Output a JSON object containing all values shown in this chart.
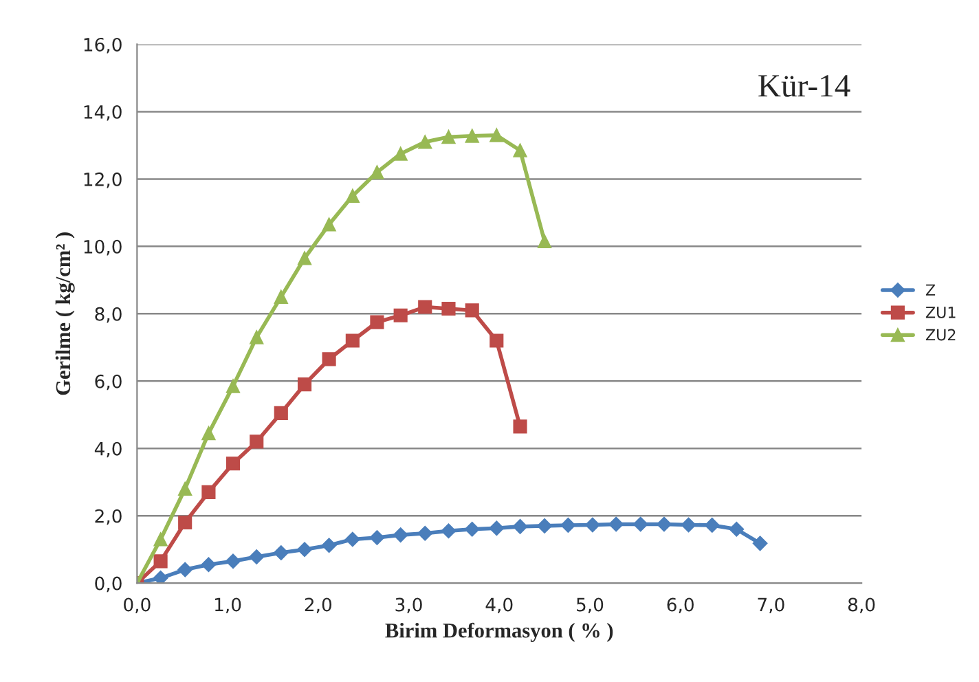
{
  "chart_data": {
    "type": "line",
    "xlabel": "Birim Deformasyon ( % )",
    "ylabel": "Gerilme ( kg/cm² )",
    "annotations": [
      "Kür-14"
    ],
    "xlim": [
      0,
      8
    ],
    "ylim": [
      0,
      16
    ],
    "xticks": [
      {
        "value": 0,
        "label": "0,0"
      },
      {
        "value": 1,
        "label": "1,0"
      },
      {
        "value": 2,
        "label": "2,0"
      },
      {
        "value": 3,
        "label": "3,0"
      },
      {
        "value": 4,
        "label": "4,0"
      },
      {
        "value": 5,
        "label": "5,0"
      },
      {
        "value": 6,
        "label": "6,0"
      },
      {
        "value": 7,
        "label": "7,0"
      },
      {
        "value": 8,
        "label": "8,0"
      }
    ],
    "yticks": [
      {
        "value": 0,
        "label": "0,0"
      },
      {
        "value": 2,
        "label": "2,0"
      },
      {
        "value": 4,
        "label": "4,0"
      },
      {
        "value": 6,
        "label": "6,0"
      },
      {
        "value": 8,
        "label": "8,0"
      },
      {
        "value": 10,
        "label": "10,0"
      },
      {
        "value": 12,
        "label": "12,0"
      },
      {
        "value": 14,
        "label": "14,0"
      },
      {
        "value": 16,
        "label": "16,0"
      }
    ],
    "grid": "y",
    "legend": "right",
    "line_style": "solid",
    "series": [
      {
        "name": "Z",
        "color": "#4a7ebb",
        "marker": "diamond",
        "x": [
          0,
          0.26,
          0.53,
          0.79,
          1.06,
          1.32,
          1.59,
          1.85,
          2.12,
          2.38,
          2.65,
          2.91,
          3.18,
          3.44,
          3.7,
          3.97,
          4.23,
          4.5,
          4.76,
          5.03,
          5.29,
          5.56,
          5.82,
          6.09,
          6.35,
          6.62,
          6.88
        ],
        "values": [
          0,
          0.15,
          0.4,
          0.55,
          0.65,
          0.78,
          0.9,
          1.0,
          1.12,
          1.3,
          1.35,
          1.43,
          1.48,
          1.55,
          1.6,
          1.63,
          1.68,
          1.7,
          1.72,
          1.73,
          1.75,
          1.75,
          1.75,
          1.73,
          1.72,
          1.6,
          1.18
        ]
      },
      {
        "name": "ZU1",
        "color": "#be4b48",
        "marker": "square",
        "x": [
          0,
          0.26,
          0.53,
          0.79,
          1.06,
          1.32,
          1.59,
          1.85,
          2.12,
          2.38,
          2.65,
          2.91,
          3.18,
          3.44,
          3.7,
          3.97,
          4.23
        ],
        "values": [
          0,
          0.65,
          1.8,
          2.7,
          3.55,
          4.2,
          5.05,
          5.9,
          6.65,
          7.2,
          7.75,
          7.95,
          8.2,
          8.15,
          8.1,
          7.2,
          4.65
        ]
      },
      {
        "name": "ZU2",
        "color": "#98b954",
        "marker": "triangle",
        "x": [
          0,
          0.26,
          0.53,
          0.79,
          1.06,
          1.32,
          1.59,
          1.85,
          2.12,
          2.38,
          2.65,
          2.91,
          3.18,
          3.44,
          3.7,
          3.97,
          4.23,
          4.5
        ],
        "values": [
          0,
          1.3,
          2.8,
          4.45,
          5.85,
          7.3,
          8.5,
          9.65,
          10.65,
          11.5,
          12.2,
          12.75,
          13.1,
          13.25,
          13.28,
          13.3,
          12.85,
          10.15
        ]
      }
    ]
  }
}
